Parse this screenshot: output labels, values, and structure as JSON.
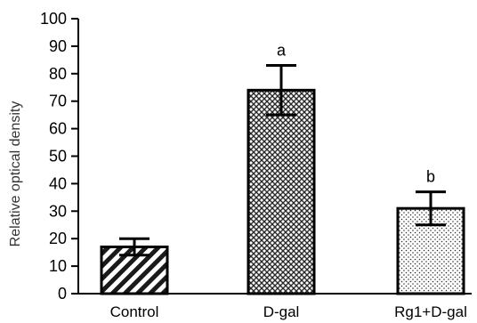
{
  "chart_data": {
    "type": "bar",
    "title": "",
    "xlabel": "",
    "ylabel": "Relative optical density",
    "ylim": [
      0,
      100
    ],
    "yticks": [
      0,
      10,
      20,
      30,
      40,
      50,
      60,
      70,
      80,
      90,
      100
    ],
    "grid": false,
    "categories": [
      "Control",
      "D-gal",
      "Rg1+D-gal"
    ],
    "values": [
      17,
      74,
      31
    ],
    "error_minus": [
      3,
      9,
      6
    ],
    "error_plus": [
      3,
      9,
      6
    ],
    "annotations": [
      "",
      "a",
      "b"
    ],
    "fill_patterns": [
      "diagonal-stripes",
      "crosshatch",
      "dots"
    ]
  }
}
